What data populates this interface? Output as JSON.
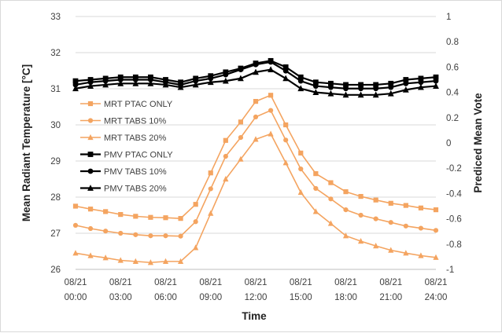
{
  "chart_data": {
    "type": "line",
    "xlabel": "Time",
    "ylabel_left": "Mean Radiant Temperature [°C]",
    "ylabel_right": "Prediced Mean Vote",
    "y_left_lim": [
      26,
      33
    ],
    "y_right_lim": [
      -1,
      1
    ],
    "y_left_ticks": [
      "26",
      "27",
      "28",
      "29",
      "30",
      "31",
      "32",
      "33"
    ],
    "y_right_ticks": [
      "-1",
      "-0.8",
      "-0.6",
      "-0.4",
      "-0.2",
      "0",
      "0.2",
      "0.4",
      "0.6",
      "0.8",
      "1"
    ],
    "x_range_hours": [
      0,
      24
    ],
    "x_ticks": [
      {
        "date": "08/21",
        "time": "00:00"
      },
      {
        "date": "08/21",
        "time": "03:00"
      },
      {
        "date": "08/21",
        "time": "06:00"
      },
      {
        "date": "08/21",
        "time": "09:00"
      },
      {
        "date": "08/21",
        "time": "12:00"
      },
      {
        "date": "08/21",
        "time": "15:00"
      },
      {
        "date": "08/21",
        "time": "18:00"
      },
      {
        "date": "08/21",
        "time": "21:00"
      },
      {
        "date": "08/21",
        "time": "24:00"
      }
    ],
    "grid": "horizontal",
    "legend_position": "left, inside plot",
    "x_hours": [
      0,
      1,
      2,
      3,
      4,
      5,
      6,
      7,
      8,
      9,
      10,
      11,
      12,
      13,
      14,
      15,
      16,
      17,
      18,
      19,
      20,
      21,
      22,
      23,
      24
    ],
    "series": [
      {
        "name": "MRT PTAC ONLY",
        "axis": "left",
        "marker": "square",
        "color": "#f4a460",
        "values": [
          27.75,
          27.67,
          27.6,
          27.52,
          27.47,
          27.44,
          27.43,
          27.41,
          27.8,
          28.67,
          29.57,
          30.08,
          30.65,
          30.82,
          30.0,
          29.22,
          28.65,
          28.4,
          28.15,
          28.02,
          27.92,
          27.83,
          27.77,
          27.7,
          27.65
        ]
      },
      {
        "name": "MRT TABS 10%",
        "axis": "left",
        "marker": "circle",
        "color": "#f4a460",
        "values": [
          27.22,
          27.13,
          27.06,
          27.0,
          26.96,
          26.93,
          26.93,
          26.92,
          27.32,
          28.23,
          29.13,
          29.65,
          30.22,
          30.4,
          29.58,
          28.78,
          28.24,
          27.95,
          27.65,
          27.5,
          27.4,
          27.3,
          27.2,
          27.14,
          27.08
        ]
      },
      {
        "name": "MRT TABS 20%",
        "axis": "left",
        "marker": "triangle",
        "color": "#f4a460",
        "values": [
          26.45,
          26.38,
          26.32,
          26.25,
          26.22,
          26.19,
          26.22,
          26.22,
          26.6,
          27.55,
          28.5,
          29.05,
          29.6,
          29.75,
          28.95,
          28.13,
          27.6,
          27.27,
          26.93,
          26.78,
          26.65,
          26.53,
          26.45,
          26.38,
          26.33
        ]
      },
      {
        "name": "PMV PTAC ONLY",
        "axis": "right",
        "marker": "square",
        "color": "#000000",
        "values": [
          0.49,
          0.5,
          0.51,
          0.52,
          0.52,
          0.52,
          0.5,
          0.48,
          0.51,
          0.53,
          0.56,
          0.59,
          0.63,
          0.65,
          0.6,
          0.52,
          0.48,
          0.47,
          0.46,
          0.46,
          0.46,
          0.47,
          0.5,
          0.51,
          0.52
        ]
      },
      {
        "name": "PMV TABS 10%",
        "axis": "right",
        "marker": "circle",
        "color": "#000000",
        "values": [
          0.46,
          0.48,
          0.49,
          0.5,
          0.5,
          0.5,
          0.48,
          0.46,
          0.49,
          0.51,
          0.54,
          0.58,
          0.62,
          0.64,
          0.57,
          0.49,
          0.45,
          0.44,
          0.43,
          0.43,
          0.43,
          0.44,
          0.47,
          0.48,
          0.49
        ]
      },
      {
        "name": "PMV TABS 20%",
        "axis": "right",
        "marker": "triangle",
        "color": "#000000",
        "values": [
          0.43,
          0.45,
          0.46,
          0.47,
          0.47,
          0.47,
          0.46,
          0.44,
          0.46,
          0.48,
          0.49,
          0.51,
          0.56,
          0.58,
          0.51,
          0.43,
          0.4,
          0.39,
          0.38,
          0.38,
          0.38,
          0.39,
          0.42,
          0.44,
          0.45
        ]
      }
    ]
  }
}
